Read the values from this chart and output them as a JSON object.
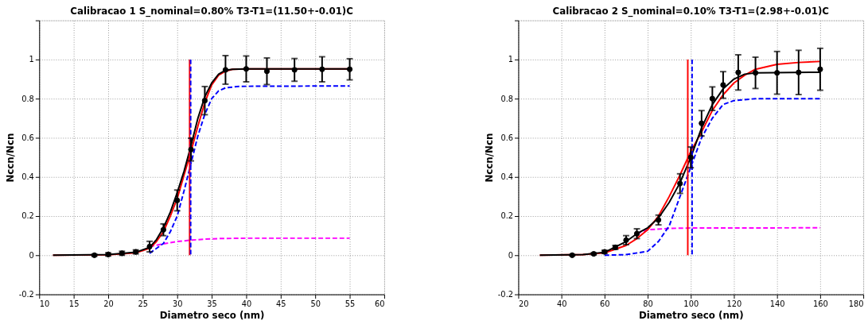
{
  "chart_data": [
    {
      "type": "line",
      "title": "Calibracao 1   S_nominal=0.80%   T3-T1=(11.50+-0.01)C",
      "xlabel": "Diametro seco (nm)",
      "ylabel": "Nccn/Ncn",
      "xlim": [
        10,
        60
      ],
      "ylim": [
        -0.2,
        1.2
      ],
      "xticks": [
        10,
        15,
        20,
        25,
        30,
        35,
        40,
        45,
        50,
        55,
        60
      ],
      "yticks": [
        -0.2,
        0,
        0.2,
        0.4,
        0.6,
        0.8,
        1,
        {
          "value": 1.2,
          "label": null
        }
      ],
      "grid": true,
      "series": [
        {
          "color": "#ff00ff",
          "line_style": "dashed",
          "x": [
            26,
            28,
            30,
            32,
            34,
            36,
            40,
            55
          ],
          "values": [
            0.044,
            0.058,
            0.07,
            0.077,
            0.082,
            0.085,
            0.087,
            0.087
          ]
        },
        {
          "color": "#0000ff",
          "line_style": "dashed",
          "x": [
            26,
            28,
            29,
            30,
            31,
            32,
            33,
            34,
            35,
            36,
            37,
            39,
            55
          ],
          "values": [
            0.01,
            0.06,
            0.12,
            0.2,
            0.33,
            0.47,
            0.61,
            0.72,
            0.8,
            0.84,
            0.855,
            0.863,
            0.865
          ]
        },
        {
          "color": "#ff0000",
          "line_style": "solid",
          "x": [
            12,
            20,
            24,
            26,
            27,
            28,
            29,
            30,
            31,
            32,
            33,
            34,
            35,
            36,
            37,
            38,
            40,
            55
          ],
          "values": [
            0,
            0.002,
            0.012,
            0.035,
            0.07,
            0.12,
            0.2,
            0.29,
            0.41,
            0.53,
            0.66,
            0.78,
            0.87,
            0.92,
            0.94,
            0.95,
            0.952,
            0.952
          ]
        },
        {
          "color": "#000000",
          "line_style": "solid",
          "x": [
            12,
            20,
            24,
            26,
            27,
            28,
            29,
            30,
            31,
            32,
            33,
            34,
            35,
            36,
            37,
            38,
            40,
            55
          ],
          "values": [
            0,
            0.003,
            0.015,
            0.04,
            0.08,
            0.14,
            0.22,
            0.32,
            0.43,
            0.56,
            0.7,
            0.81,
            0.88,
            0.925,
            0.945,
            0.95,
            0.952,
            0.952
          ]
        },
        {
          "color": "#ff0000",
          "line_style": "solid",
          "x": [
            31.8,
            31.8
          ],
          "values": [
            0,
            1
          ]
        },
        {
          "color": "#0000ff",
          "line_style": "dashed",
          "x": [
            31.95,
            31.95
          ],
          "values": [
            1,
            0
          ]
        },
        {
          "type": "scatter",
          "color": "#000000",
          "marker": "circle",
          "x": [
            18,
            20,
            22,
            24,
            26,
            28,
            30,
            32,
            34,
            37,
            40,
            43,
            47,
            51,
            55
          ],
          "values": [
            0,
            0.004,
            0.01,
            0.017,
            0.044,
            0.13,
            0.28,
            0.54,
            0.79,
            0.947,
            0.952,
            0.94,
            0.947,
            0.95,
            0.95
          ],
          "errors": [
            0.005,
            0.008,
            0.01,
            0.01,
            0.027,
            0.03,
            0.053,
            0.058,
            0.072,
            0.073,
            0.066,
            0.068,
            0.058,
            0.064,
            0.054
          ]
        }
      ]
    },
    {
      "type": "line",
      "title": "Calibracao 2   S_nominal=0.10%   T3-T1=(2.98+-0.01)C",
      "xlabel": "Diametro seco (nm)",
      "ylabel": "Nccn/Ncn",
      "xlim": [
        20,
        180
      ],
      "ylim": [
        -0.2,
        1.2
      ],
      "xticks": [
        20,
        40,
        60,
        80,
        100,
        120,
        140,
        160,
        180
      ],
      "yticks": [
        -0.2,
        0,
        0.2,
        0.4,
        0.6,
        0.8,
        1,
        {
          "value": 1.2,
          "label": null
        }
      ],
      "grid": true,
      "series": [
        {
          "color": "#ff00ff",
          "line_style": "dashed",
          "x": [
            75,
            80,
            90,
            100,
            160
          ],
          "values": [
            0.11,
            0.13,
            0.137,
            0.139,
            0.14
          ]
        },
        {
          "color": "#0000ff",
          "line_style": "dashed",
          "x": [
            60,
            70,
            80,
            85,
            90,
            95,
            100,
            105,
            110,
            115,
            120,
            130,
            160
          ],
          "values": [
            0,
            0.003,
            0.02,
            0.07,
            0.15,
            0.3,
            0.45,
            0.6,
            0.7,
            0.77,
            0.79,
            0.8,
            0.8
          ]
        },
        {
          "color": "#ff0000",
          "line_style": "solid",
          "x": [
            30,
            50,
            60,
            70,
            75,
            80,
            85,
            90,
            95,
            100,
            105,
            110,
            115,
            120,
            125,
            130,
            140,
            150,
            160
          ],
          "values": [
            0,
            0.003,
            0.012,
            0.05,
            0.085,
            0.13,
            0.2,
            0.3,
            0.41,
            0.53,
            0.63,
            0.74,
            0.82,
            0.88,
            0.92,
            0.95,
            0.975,
            0.985,
            0.99
          ]
        },
        {
          "color": "#000000",
          "line_style": "solid",
          "x": [
            30,
            50,
            60,
            70,
            75,
            80,
            85,
            90,
            95,
            100,
            105,
            110,
            115,
            120,
            125,
            130,
            160
          ],
          "values": [
            0,
            0.003,
            0.015,
            0.07,
            0.11,
            0.14,
            0.19,
            0.27,
            0.37,
            0.5,
            0.65,
            0.77,
            0.85,
            0.9,
            0.925,
            0.932,
            0.935
          ]
        },
        {
          "color": "#ff0000",
          "line_style": "solid",
          "x": [
            98.6,
            98.6
          ],
          "values": [
            0,
            1
          ]
        },
        {
          "color": "#0000ff",
          "line_style": "dashed",
          "x": [
            100.6,
            100.6
          ],
          "values": [
            1,
            0
          ]
        },
        {
          "type": "scatter",
          "color": "#000000",
          "marker": "circle",
          "x": [
            45,
            55,
            60,
            65,
            70,
            75,
            85,
            95,
            100,
            105,
            110,
            115,
            122,
            130,
            140,
            150,
            160
          ],
          "values": [
            0,
            0.007,
            0.017,
            0.04,
            0.077,
            0.11,
            0.18,
            0.366,
            0.5,
            0.674,
            0.8,
            0.87,
            0.934,
            0.932,
            0.932,
            0.934,
            0.95
          ],
          "errors": [
            0.003,
            0.005,
            0.008,
            0.01,
            0.023,
            0.025,
            0.025,
            0.05,
            0.053,
            0.065,
            0.06,
            0.068,
            0.09,
            0.08,
            0.109,
            0.113,
            0.107
          ]
        }
      ]
    }
  ]
}
